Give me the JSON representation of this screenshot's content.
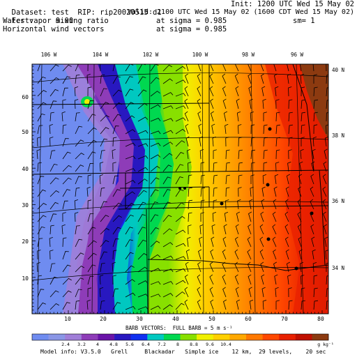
{
  "header": {
    "dataset_label": "Dataset:",
    "dataset": "test",
    "rip_label": "RIP:",
    "rip": "rip20020515 d1",
    "init": "Init: 1200 UTC Wed 15 May 02",
    "fcst_label": "Fcst:",
    "fcst": "9.00",
    "valid": "Valid: 2100 UTC Wed 15 May 02 (1600 CDT Wed 15 May 02)",
    "field1": "Water vapor mixing ratio",
    "field1_level": "at sigma = 0.985",
    "field1_extra": "sm= 1",
    "field2": "Horizontal wind vectors",
    "field2_level": "at sigma = 0.985"
  },
  "map": {
    "lon_labels": [
      "106 W",
      "104 W",
      "102 W",
      "100 W",
      "98 W",
      "96 W"
    ],
    "lat_labels": [
      "40 N",
      "38 N",
      "36 N",
      "34 N"
    ],
    "y_ticks": [
      "60",
      "50",
      "40",
      "30",
      "20",
      "10"
    ],
    "x_ticks": [
      "10",
      "20",
      "30",
      "40",
      "50",
      "60",
      "70",
      "80"
    ]
  },
  "barbs_caption": "BARB VECTORS:  FULL BARB = 5 m s⁻¹",
  "colorbar": {
    "labels": [
      "2.4",
      "3.2",
      "4",
      "4.8",
      "5.6",
      "6.4",
      "7.2",
      "8",
      "8.8",
      "9.6",
      "10.4"
    ],
    "unit": "g kg⁻¹",
    "colors": [
      "#6f8cf0",
      "#8a96e6",
      "#a07ed8",
      "#8e3cb8",
      "#6a14a8",
      "#2818c0",
      "#1030f0",
      "#00c8c0",
      "#00d850",
      "#88e000",
      "#f0f000",
      "#ffd000",
      "#ffa800",
      "#ff7800",
      "#ff4800",
      "#e82000",
      "#c01000",
      "#8c3a10"
    ]
  },
  "footer": {
    "model_info": "Model info: V3.5.0   Grell     Blackadar   Simple ice    12 km,  29 levels,    20 sec"
  }
}
